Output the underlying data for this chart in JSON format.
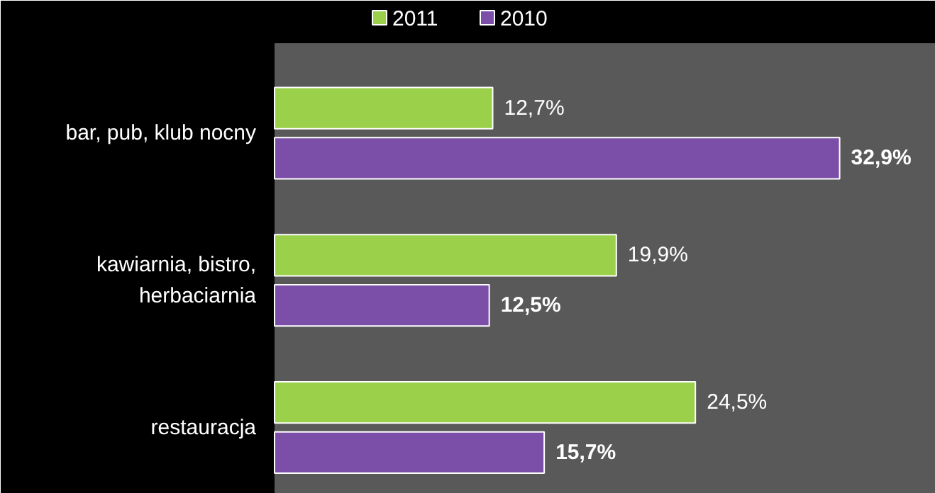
{
  "chart_data": {
    "type": "bar",
    "orientation": "horizontal",
    "categories": [
      "bar, pub, klub nocny",
      "kawiarnia, bistro, herbaciarnia",
      "restauracja"
    ],
    "series": [
      {
        "name": "2011",
        "color": "#9bd04a",
        "values": [
          12.7,
          19.9,
          24.5
        ],
        "value_labels": [
          "12,7%",
          "19,9%",
          "24,5%"
        ]
      },
      {
        "name": "2010",
        "color": "#7b4fa8",
        "values": [
          32.9,
          12.5,
          15.7
        ],
        "value_labels": [
          "32,9%",
          "12,5%",
          "15,7%"
        ]
      }
    ],
    "legend": "top"
  }
}
